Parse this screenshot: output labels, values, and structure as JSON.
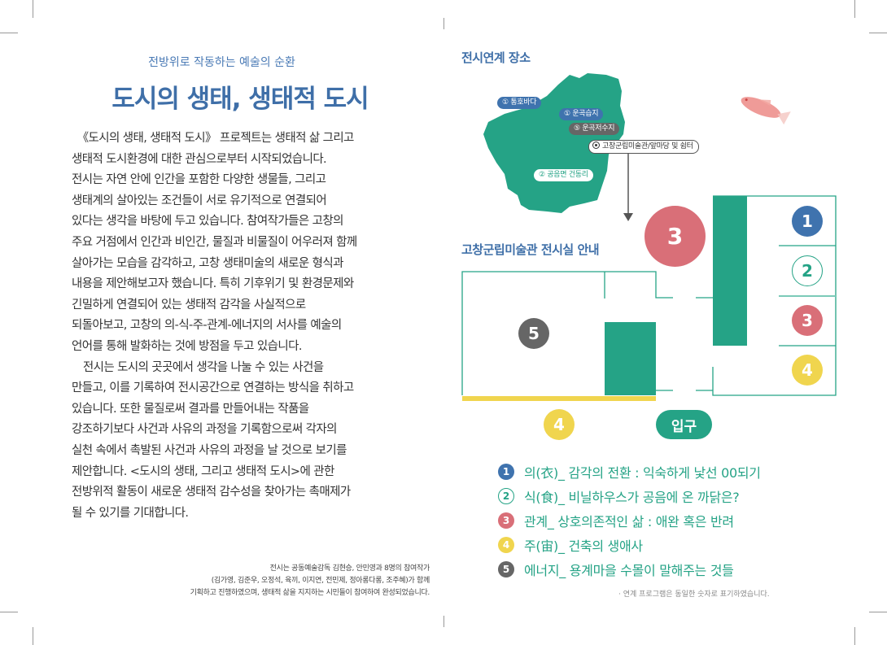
{
  "left_page": {
    "subtitle": "전방위로 작동하는 예술의 순환",
    "title": "도시의 생태, 생태적 도시",
    "body_lines": [
      "　《도시의 생태, 생태적 도시》 프로젝트는 생태적 삶 그리고",
      "생태적 도시환경에 대한 관심으로부터 시작되었습니다.",
      "전시는 자연 안에 인간을 포함한 다양한 생물들, 그리고",
      "생태계의 살아있는 조건들이 서로 유기적으로 연결되어",
      "있다는 생각을 바탕에 두고 있습니다. 참여작가들은 고창의",
      "주요 거점에서 인간과 비인간, 물질과 비물질이 어우러져 함께",
      "살아가는 모습을 감각하고, 고창 생태미술의 새로운 형식과",
      "내용을 제안해보고자 했습니다. 특히 기후위기 및 환경문제와",
      "긴밀하게 연결되어 있는 생태적 감각을 사실적으로",
      "되돌아보고, 고창의 의-식-주-관계-에너지의 서사를 예술의",
      "언어를 통해 발화하는 것에 방점을 두고 있습니다.",
      "　전시는 도시의 곳곳에서 생각을 나눌 수 있는 사건을",
      "만들고, 이를 기록하여 전시공간으로 연결하는 방식을 취하고",
      "있습니다. 또한 물질로써 결과를 만들어내는 작품을",
      "강조하기보다 사건과 사유의 과정을 기록함으로써 각자의",
      "실천 속에서 촉발된 사건과 사유의 과정을 날 것으로 보기를",
      "제안합니다. <도시의 생태, 그리고 생태적 도시>에 관한",
      "전방위적 활동이 새로운 생태적 감수성을 찾아가는 촉매제가",
      "될 수 있기를 기대합니다."
    ],
    "credits": [
      "전시는 공동예술감독 김현승, 안민영과 8명의 참여작가",
      "(김가영, 김준우, 오정석, 육끼, 이지연, 전민제, 정아롱다롱, 조주혜)가 함께",
      "기획하고 진행하였으며, 생태적 삶을 지지하는 시민들이 참여하여 완성되었습니다."
    ]
  },
  "map_section": {
    "heading": "전시연계 장소",
    "labels": [
      {
        "text": "① 통호바다",
        "style": "blue"
      },
      {
        "text": "① 운곡습지",
        "style": "blue"
      },
      {
        "text": "⑤ 운곡저수지",
        "style": "gray"
      },
      {
        "text": "고창군립미술관/앞마당 및 쉼터",
        "style": "outline",
        "icon": "target-icon"
      },
      {
        "text": "② 공음면 건동리",
        "style": "white-green"
      }
    ]
  },
  "floor_plan": {
    "heading": "고창군립미술관 전시실 안내",
    "entrance": "입구",
    "markers": [
      "3",
      "1",
      "2",
      "3",
      "4",
      "5",
      "4"
    ]
  },
  "legend": [
    {
      "num": "1",
      "text": "의(衣)_ 감각의 전환 : 익숙하게 낯선 00되기",
      "color": "#3f73ae"
    },
    {
      "num": "2",
      "text": "식(食)_ 비닐하우스가 공음에 온 까닭은?",
      "color": "#25a386",
      "outline": true
    },
    {
      "num": "3",
      "text": "관계_ 상호의존적인 삶 : 애완 혹은 반려",
      "color": "#d96f78"
    },
    {
      "num": "4",
      "text": "주(宙)_ 건축의 생애사",
      "color": "#f0d54e"
    },
    {
      "num": "5",
      "text": "에너지_ 용계마을 수몰이 말해주는 것들",
      "color": "#666666"
    }
  ],
  "note": "· 연계 프로그램은 동일한 숫자로 표기하였습니다.",
  "colors": {
    "green": "#25a386",
    "blue": "#3f73ae",
    "red": "#d96f78",
    "yellow": "#f0d54e",
    "gray": "#666666",
    "heading": "#3f6fa8"
  }
}
